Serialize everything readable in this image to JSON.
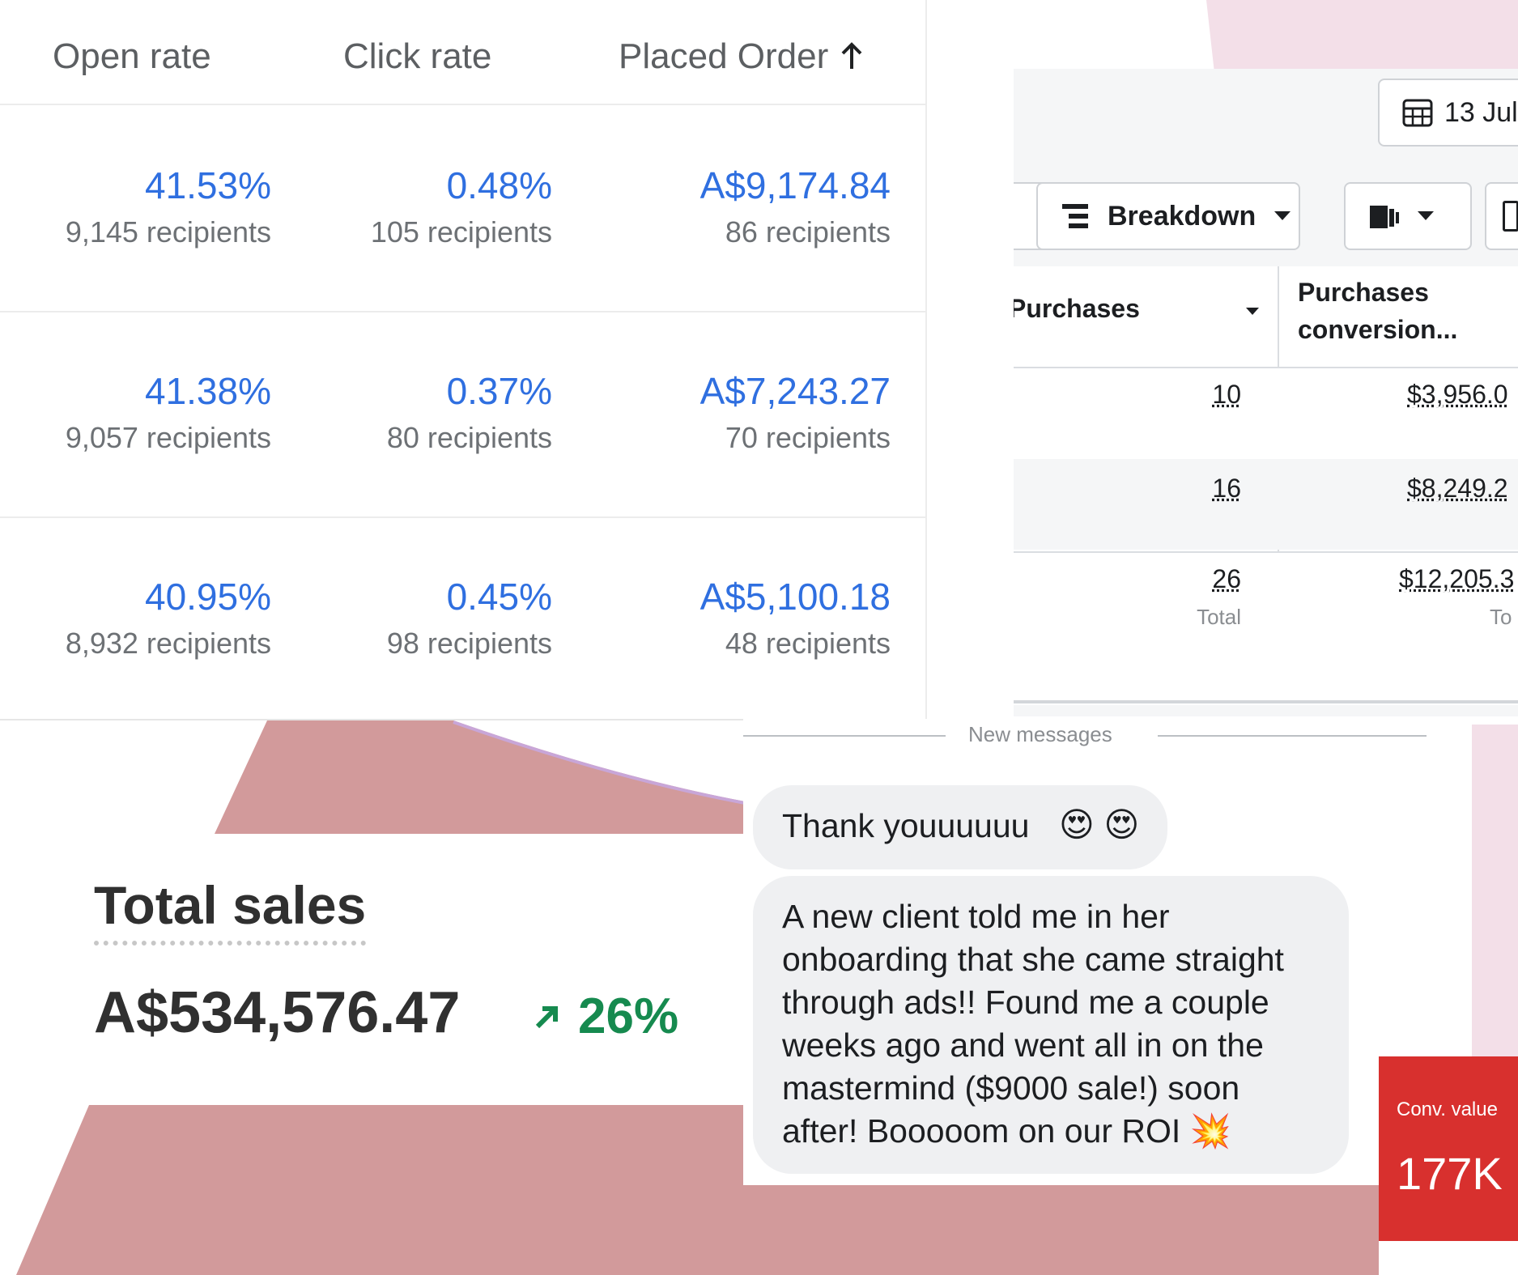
{
  "email_metrics": {
    "headers": {
      "open_rate": "Open rate",
      "click_rate": "Click rate",
      "placed_order": "Placed Order"
    },
    "sort_icon": "arrow-up-icon",
    "rows": [
      {
        "open_rate": "41.53%",
        "open_recipients": "9,145 recipients",
        "click_rate": "0.48%",
        "click_recipients": "105 recipients",
        "placed_order": "A$9,174.84",
        "order_recipients": "86 recipients"
      },
      {
        "open_rate": "41.38%",
        "open_recipients": "9,057 recipients",
        "click_rate": "0.37%",
        "click_recipients": "80 recipients",
        "placed_order": "A$7,243.27",
        "order_recipients": "70 recipients"
      },
      {
        "open_rate": "40.95%",
        "open_recipients": "8,932 recipients",
        "click_rate": "0.45%",
        "click_recipients": "98 recipients",
        "placed_order": "A$5,100.18",
        "order_recipients": "48 recipients"
      }
    ]
  },
  "ads_manager": {
    "date_button": "13 Jul",
    "breakdown_button": "Breakdown",
    "columns": {
      "purchases": "Purchases",
      "purchases_conversion_line1": "Purchases",
      "purchases_conversion_line2": "conversion..."
    },
    "rows": [
      {
        "purchases": "10",
        "conversion": "$3,956.0"
      },
      {
        "purchases": "16",
        "conversion": "$8,249.2"
      },
      {
        "purchases": "26",
        "conversion": "$12,205.3"
      }
    ],
    "total_label": "Total",
    "total_label_cut": "To"
  },
  "total_sales": {
    "title": "Total sales",
    "value": "A$534,576.47",
    "change": "26%",
    "change_color": "#168a4f"
  },
  "messages": {
    "divider": "New messages",
    "bubble1": "Thank youuuuuu",
    "bubble1_emoji": "😍 😍",
    "bubble2_lines": [
      "A new client told me in her",
      "onboarding that she came straight",
      "through ads!! Found me a couple",
      "weeks ago and went all in on the",
      "mastermind ($9000 sale!) soon",
      "after! Booooom on our ROI"
    ],
    "bubble2_emoji": "💥"
  },
  "conv_card": {
    "label": "Conv. value",
    "value": "177K",
    "color": "#d8302e"
  },
  "colors": {
    "accent_blue": "#2f6fe0",
    "bg_rose": "#d29a9b",
    "bg_pink": "#f3dfe8"
  }
}
